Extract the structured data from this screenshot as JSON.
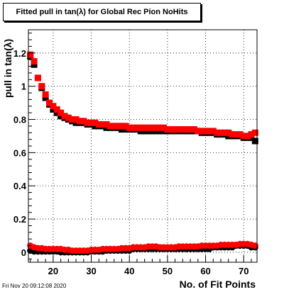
{
  "title": "Fitted pull in tan(λ) for Global Rec Pion NoHits",
  "footer": "Fri Nov 20 09:12:08 2020",
  "chart_data": {
    "type": "scatter",
    "title": "Fitted pull in tan(λ) for Global Rec Pion NoHits",
    "xlabel": "No. of Fit Points",
    "ylabel": "pull in tan(λ)",
    "xlim": [
      13.5,
      73.5
    ],
    "ylim": [
      -0.06,
      1.34
    ],
    "grid": true,
    "xticks": [
      20,
      30,
      40,
      50,
      60,
      70
    ],
    "yticks": [
      0,
      0.2,
      0.4,
      0.6,
      0.8,
      1,
      1.2
    ],
    "ytick_labels": [
      "0",
      "0.2",
      "0.4",
      "0.6",
      "0.8",
      "1",
      "1.2"
    ],
    "x": [
      14,
      15,
      16,
      17,
      18,
      19,
      20,
      21,
      22,
      23,
      24,
      25,
      26,
      27,
      28,
      29,
      30,
      31,
      32,
      33,
      34,
      35,
      36,
      37,
      38,
      39,
      40,
      41,
      42,
      43,
      44,
      45,
      46,
      47,
      48,
      49,
      50,
      51,
      52,
      53,
      54,
      55,
      56,
      57,
      58,
      59,
      60,
      61,
      62,
      63,
      64,
      65,
      66,
      67,
      68,
      69,
      70,
      71,
      72,
      73
    ],
    "series": [
      {
        "marker": "square",
        "color": "#000000",
        "values": [
          1.18,
          1.13,
          1.05,
          0.99,
          0.93,
          0.89,
          0.86,
          0.84,
          0.82,
          0.81,
          0.8,
          0.79,
          0.78,
          0.78,
          0.78,
          0.77,
          0.77,
          0.76,
          0.76,
          0.76,
          0.75,
          0.75,
          0.75,
          0.75,
          0.74,
          0.74,
          0.74,
          0.74,
          0.74,
          0.73,
          0.73,
          0.73,
          0.73,
          0.73,
          0.73,
          0.73,
          0.73,
          0.73,
          0.73,
          0.73,
          0.73,
          0.73,
          0.73,
          0.73,
          0.73,
          0.72,
          0.72,
          0.72,
          0.72,
          0.71,
          0.71,
          0.71,
          0.7,
          0.7,
          0.7,
          0.7,
          0.69,
          0.69,
          0.69,
          0.67
        ]
      },
      {
        "marker": "square",
        "color": "#ff0000",
        "values": [
          1.19,
          1.15,
          1.05,
          1.0,
          0.95,
          0.9,
          0.88,
          0.86,
          0.84,
          0.82,
          0.81,
          0.8,
          0.8,
          0.79,
          0.79,
          0.78,
          0.78,
          0.78,
          0.77,
          0.77,
          0.77,
          0.76,
          0.76,
          0.76,
          0.76,
          0.76,
          0.75,
          0.75,
          0.75,
          0.75,
          0.75,
          0.75,
          0.75,
          0.75,
          0.75,
          0.75,
          0.74,
          0.74,
          0.74,
          0.74,
          0.74,
          0.74,
          0.74,
          0.74,
          0.73,
          0.73,
          0.73,
          0.73,
          0.73,
          0.72,
          0.72,
          0.72,
          0.72,
          0.71,
          0.71,
          0.71,
          0.7,
          0.7,
          0.71,
          0.72
        ]
      },
      {
        "marker": "circle",
        "color": "#000000",
        "values": [
          0.01,
          0.005,
          0.005,
          0.005,
          0.005,
          0.005,
          0.005,
          0.005,
          0.0,
          0.0,
          0.0,
          0.0,
          0.0,
          0.0,
          0.0,
          0.0,
          0.005,
          0.005,
          0.005,
          0.005,
          0.01,
          0.01,
          0.01,
          0.01,
          0.01,
          0.01,
          0.01,
          0.02,
          0.02,
          0.02,
          0.02,
          0.02,
          0.02,
          0.02,
          0.02,
          0.02,
          0.02,
          0.02,
          0.02,
          0.02,
          0.02,
          0.02,
          0.02,
          0.02,
          0.02,
          0.02,
          0.02,
          0.02,
          0.03,
          0.03,
          0.03,
          0.03,
          0.03,
          0.03,
          0.04,
          0.04,
          0.04,
          0.04,
          0.03,
          0.03
        ]
      },
      {
        "marker": "circle",
        "color": "#ff0000",
        "values": [
          0.04,
          0.03,
          0.025,
          0.025,
          0.02,
          0.02,
          0.02,
          0.02,
          0.02,
          0.015,
          0.015,
          0.01,
          0.01,
          0.01,
          0.01,
          0.01,
          0.015,
          0.015,
          0.015,
          0.02,
          0.02,
          0.02,
          0.02,
          0.02,
          0.025,
          0.025,
          0.025,
          0.03,
          0.03,
          0.03,
          0.03,
          0.035,
          0.035,
          0.035,
          0.03,
          0.03,
          0.03,
          0.03,
          0.03,
          0.035,
          0.035,
          0.035,
          0.035,
          0.035,
          0.035,
          0.04,
          0.04,
          0.04,
          0.04,
          0.04,
          0.045,
          0.045,
          0.045,
          0.045,
          0.045,
          0.05,
          0.05,
          0.05,
          0.045,
          0.04
        ]
      }
    ]
  }
}
